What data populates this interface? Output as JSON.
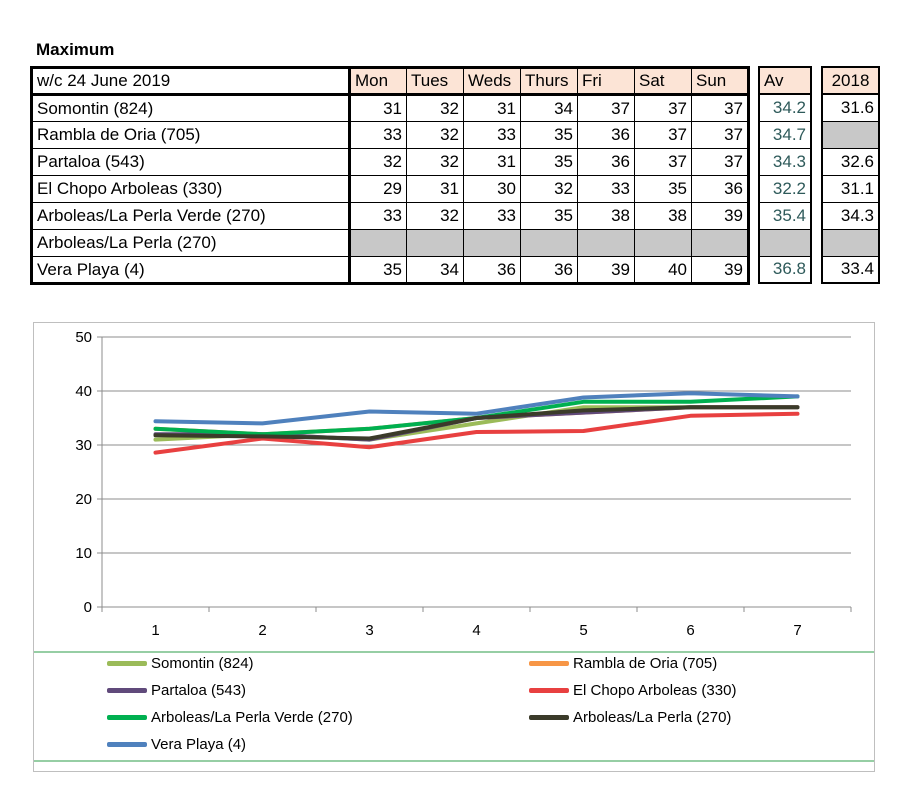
{
  "heading": "Maximum",
  "table": {
    "title": "w/c 24 June 2019",
    "days": [
      "Mon",
      "Tues",
      "Weds",
      "Thurs",
      "Fri",
      "Sat",
      "Sun"
    ],
    "av_header": "Av",
    "year_header": "2018",
    "rows": [
      {
        "station": "Somontin (824)",
        "values": [
          "31",
          "32",
          "31",
          "34",
          "37",
          "37",
          "37"
        ],
        "av": "34.2",
        "y2018": "31.6"
      },
      {
        "station": "Rambla de Oria (705)",
        "values": [
          "33",
          "32",
          "33",
          "35",
          "36",
          "37",
          "37"
        ],
        "av": "34.7",
        "y2018": ""
      },
      {
        "station": "Partaloa (543)",
        "values": [
          "32",
          "32",
          "31",
          "35",
          "36",
          "37",
          "37"
        ],
        "av": "34.3",
        "y2018": "32.6"
      },
      {
        "station": "El Chopo  Arboleas (330)",
        "values": [
          "29",
          "31",
          "30",
          "32",
          "33",
          "35",
          "36"
        ],
        "av": "32.2",
        "y2018": "31.1"
      },
      {
        "station": "Arboleas/La Perla Verde (270)",
        "values": [
          "33",
          "32",
          "33",
          "35",
          "38",
          "38",
          "39"
        ],
        "av": "35.4",
        "y2018": "34.3"
      },
      {
        "station": "Arboleas/La Perla (270)",
        "values": [
          "",
          "",
          "",
          "",
          "",
          "",
          ""
        ],
        "av": "",
        "y2018": ""
      },
      {
        "station": "Vera Playa (4)",
        "values": [
          "35",
          "34",
          "36",
          "36",
          "39",
          "40",
          "39"
        ],
        "av": "36.8",
        "y2018": "33.4"
      }
    ]
  },
  "chart_data": {
    "type": "line",
    "x": [
      1,
      2,
      3,
      4,
      5,
      6,
      7
    ],
    "xticks": [
      "1",
      "2",
      "3",
      "4",
      "5",
      "6",
      "7"
    ],
    "yticks": [
      "0",
      "10",
      "20",
      "30",
      "40",
      "50"
    ],
    "ylim": [
      0,
      50
    ],
    "grid": true,
    "legend_position": "bottom",
    "series": [
      {
        "name": "Somontin (824)",
        "color": "#9bbb59",
        "values": [
          31,
          32,
          31,
          34,
          37,
          37,
          37
        ]
      },
      {
        "name": "Rambla de Oria (705)",
        "color": "#f79646",
        "values": [
          33,
          32,
          33,
          35,
          36,
          37,
          37
        ]
      },
      {
        "name": "Partaloa (543)",
        "color": "#604a7b",
        "values": [
          32,
          32,
          31,
          35,
          36,
          37,
          37
        ]
      },
      {
        "name": "El Chopo  Arboleas (330)",
        "color": "#e84040",
        "values": [
          28.6,
          31.2,
          29.6,
          32.4,
          32.6,
          35.4,
          35.8
        ]
      },
      {
        "name": "Arboleas/La Perla Verde (270)",
        "color": "#00b050",
        "values": [
          33,
          32,
          33,
          35,
          38,
          38,
          39
        ]
      },
      {
        "name": "Arboleas/La Perla (270)",
        "color": "#3b3b2a",
        "values": [
          31.8,
          31.6,
          31.2,
          35,
          36.4,
          37,
          37
        ]
      },
      {
        "name": "Vera Playa (4)",
        "color": "#4f81bd",
        "values": [
          34.4,
          34,
          36.2,
          35.8,
          38.8,
          39.6,
          39
        ]
      }
    ]
  }
}
